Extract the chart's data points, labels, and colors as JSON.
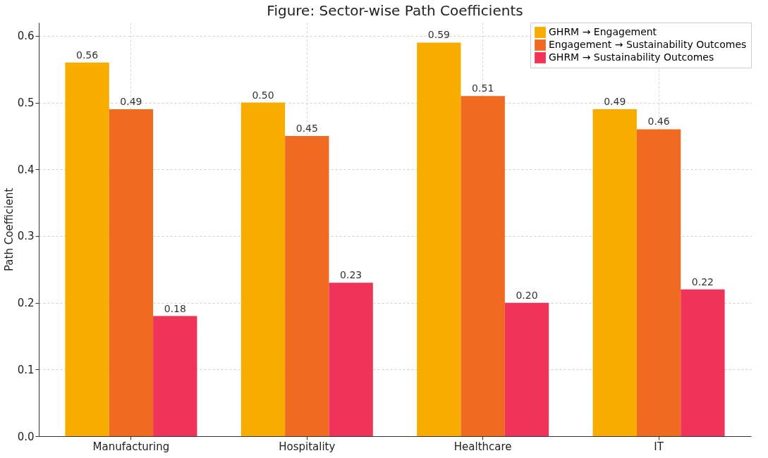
{
  "chart_data": {
    "type": "bar",
    "title": "Figure: Sector-wise Path Coefficients",
    "ylabel": "Path Coefficient",
    "categories": [
      "Manufacturing",
      "Hospitality",
      "Healthcare",
      "IT"
    ],
    "series": [
      {
        "name": "GHRM → Engagement",
        "color": "#f9ac00",
        "values": [
          0.56,
          0.5,
          0.59,
          0.49
        ],
        "value_labels": [
          "0.56",
          "0.50",
          "0.59",
          "0.49"
        ]
      },
      {
        "name": "Engagement → Sustainability Outcomes",
        "color": "#f06a22",
        "values": [
          0.49,
          0.45,
          0.51,
          0.46
        ],
        "value_labels": [
          "0.49",
          "0.45",
          "0.51",
          "0.46"
        ]
      },
      {
        "name": "GHRM → Sustainability Outcomes",
        "color": "#f03358",
        "values": [
          0.18,
          0.23,
          0.2,
          0.22
        ],
        "value_labels": [
          "0.18",
          "0.23",
          "0.20",
          "0.22"
        ]
      }
    ],
    "ylim": [
      0,
      0.62
    ],
    "yticks": [
      {
        "value": 0,
        "label": "0.0"
      },
      0.1,
      0.2,
      0.3,
      0.4,
      0.5,
      0.6
    ],
    "grid": true,
    "legend": "top right"
  }
}
